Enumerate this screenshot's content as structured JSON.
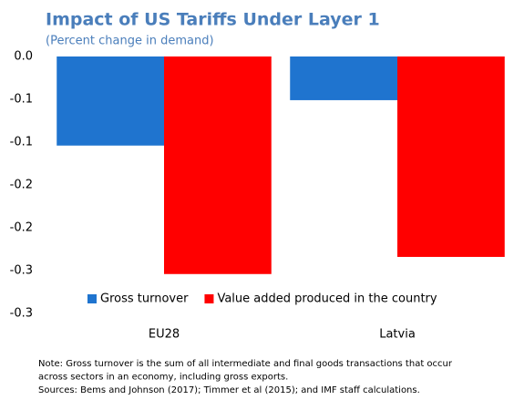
{
  "chart_data": {
    "type": "bar",
    "title": "Impact of US Tariffs Under Layer 1",
    "subtitle": "(Percent change in demand)",
    "categories": [
      "EU28",
      "Latvia"
    ],
    "series": [
      {
        "name": "Gross turnover",
        "color": "#1f74cf",
        "values": [
          -0.104,
          -0.051
        ]
      },
      {
        "name": "Value added produced in the country",
        "color": "#ff0000",
        "values": [
          -0.254,
          -0.234
        ]
      }
    ],
    "ylim": [
      -0.3,
      0
    ],
    "yticks": [
      {
        "value": 0,
        "label": "0.0"
      },
      {
        "value": -0.05,
        "label": "-0.1"
      },
      {
        "value": -0.1,
        "label": "-0.1"
      },
      {
        "value": -0.15,
        "label": "-0.2"
      },
      {
        "value": -0.2,
        "label": "-0.2"
      },
      {
        "value": -0.25,
        "label": "-0.3"
      },
      {
        "value": -0.3,
        "label": "-0.3"
      }
    ],
    "legend": "bottom",
    "notes": [
      "Note: Gross turnover is the sum of all intermediate and final goods transactions that occur",
      "across sectors in an economy, including gross exports.",
      "Sources: Bems and Johnson (2017); Timmer et al (2015); and IMF staff calculations."
    ]
  }
}
